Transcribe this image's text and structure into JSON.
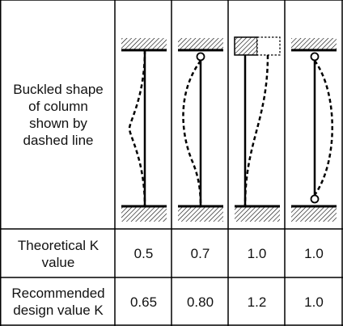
{
  "row_headers": {
    "shape": [
      "Buckled shape",
      "of column",
      "shown by",
      "dashed line"
    ],
    "theoretical": [
      "Theoretical K",
      "value"
    ],
    "recommended": [
      "Recommended",
      "design value K"
    ]
  },
  "columns": [
    {
      "case": "fixed-fixed",
      "top_end": "fixed",
      "bottom_end": "fixed",
      "theoretical_k": "0.5",
      "recommended_k": "0.65"
    },
    {
      "case": "fixed-pinned",
      "top_end": "pinned",
      "bottom_end": "fixed",
      "theoretical_k": "0.7",
      "recommended_k": "0.80"
    },
    {
      "case": "fixed-free",
      "top_end": "free-sway",
      "bottom_end": "fixed",
      "theoretical_k": "1.0",
      "recommended_k": "1.2"
    },
    {
      "case": "pinned-pinned",
      "top_end": "pinned",
      "bottom_end": "pinned",
      "theoretical_k": "1.0",
      "recommended_k": "1.0"
    }
  ],
  "colors": {
    "line": "#000000",
    "hatch": "#000000",
    "text": "#111111",
    "background": "#ffffff"
  }
}
